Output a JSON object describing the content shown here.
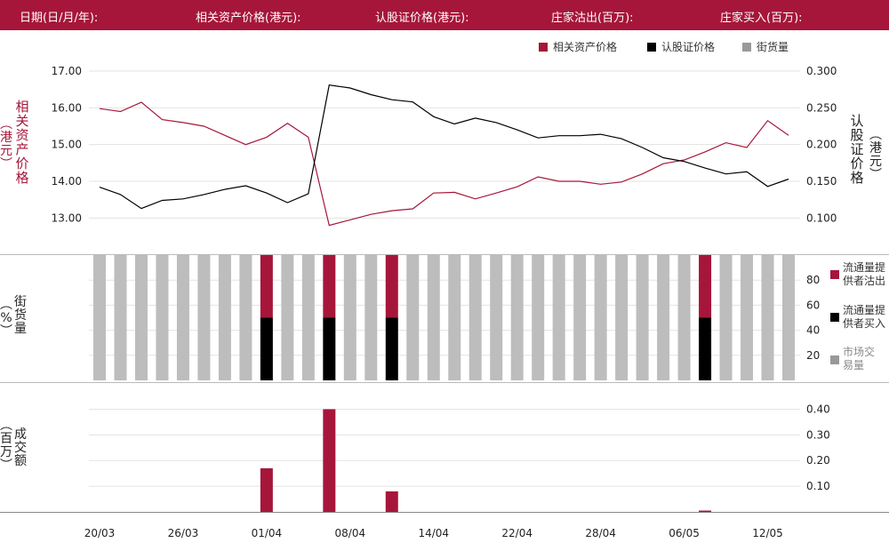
{
  "header": {
    "labels": [
      "日期(日/月/年):",
      "相关资产价格(港元):",
      "认股证价格(港元):",
      "庄家沽出(百万):",
      "庄家买入(百万):"
    ]
  },
  "legend": {
    "items": [
      {
        "label": "相关资产价格",
        "color": "#a6163a"
      },
      {
        "label": "认股证价格",
        "color": "#000000"
      },
      {
        "label": "街货量",
        "color": "#999999"
      }
    ]
  },
  "axes": {
    "left_label": "相关资产价格",
    "left_unit": "港元",
    "right_label": "认股证价格",
    "right_unit": "港元",
    "pct_label": "街货量",
    "pct_unit": "%",
    "turnover_label": "成交额",
    "turnover_unit": "百万"
  },
  "side_legend": [
    {
      "label": "流通量提供者沽出",
      "color": "#a6163a"
    },
    {
      "label": "流通量提供者买入",
      "color": "#000000"
    },
    {
      "label": "市场交易量",
      "color": "#999999"
    }
  ],
  "chart_data": {
    "type": "line",
    "x_ticks": [
      "20/03",
      "26/03",
      "01/04",
      "08/04",
      "14/04",
      "22/04",
      "28/04",
      "06/05",
      "12/05"
    ],
    "x_tick_index": [
      0,
      4,
      8,
      12,
      16,
      20,
      24,
      28,
      32
    ],
    "n_points": 34,
    "price": {
      "left_ticks": [
        "17.00",
        "16.00",
        "15.00",
        "14.00",
        "13.00"
      ],
      "left_range": [
        12.5,
        17.0
      ],
      "right_ticks": [
        "0.300",
        "0.250",
        "0.200",
        "0.150",
        "0.100"
      ],
      "right_range": [
        0.075,
        0.3
      ],
      "series": [
        {
          "name": "相关资产价格",
          "axis": "left",
          "color": "#a6163a",
          "values": [
            15.98,
            15.9,
            16.15,
            15.68,
            15.6,
            15.5,
            15.25,
            15.0,
            15.2,
            15.58,
            15.2,
            12.8,
            12.95,
            13.1,
            13.2,
            13.25,
            13.68,
            13.7,
            13.52,
            13.68,
            13.85,
            14.12,
            14.0,
            14.0,
            13.92,
            13.98,
            14.2,
            14.48,
            14.58,
            14.8,
            15.05,
            14.92,
            15.65,
            15.25
          ]
        },
        {
          "name": "认股证价格",
          "axis": "right",
          "color": "#000000",
          "values": [
            0.142,
            0.132,
            0.113,
            0.124,
            0.126,
            0.132,
            0.139,
            0.144,
            0.134,
            0.121,
            0.133,
            0.281,
            0.277,
            0.268,
            0.261,
            0.258,
            0.238,
            0.228,
            0.236,
            0.23,
            0.22,
            0.209,
            0.212,
            0.212,
            0.214,
            0.208,
            0.196,
            0.182,
            0.177,
            0.168,
            0.16,
            0.163,
            0.143,
            0.153
          ]
        }
      ]
    },
    "outstanding": {
      "type": "bar",
      "ticks": [
        "80",
        "60",
        "40",
        "20"
      ],
      "range": [
        0,
        100
      ],
      "market_pct": [
        100,
        100,
        100,
        100,
        100,
        100,
        100,
        100,
        100,
        100,
        100,
        100,
        100,
        100,
        100,
        100,
        100,
        100,
        100,
        100,
        100,
        100,
        100,
        100,
        100,
        100,
        100,
        100,
        100,
        100,
        100,
        100,
        100,
        100
      ],
      "lp_sell_pct": [
        0,
        0,
        0,
        0,
        0,
        0,
        0,
        0,
        50,
        0,
        0,
        50,
        0,
        0,
        50,
        0,
        0,
        0,
        0,
        0,
        0,
        0,
        0,
        0,
        0,
        0,
        0,
        0,
        0,
        50,
        0,
        0,
        0,
        0
      ],
      "lp_buy_pct": [
        0,
        0,
        0,
        0,
        0,
        0,
        0,
        0,
        50,
        0,
        0,
        50,
        0,
        0,
        50,
        0,
        0,
        0,
        0,
        0,
        0,
        0,
        0,
        0,
        0,
        0,
        0,
        0,
        0,
        50,
        0,
        0,
        0,
        0
      ]
    },
    "turnover": {
      "type": "bar",
      "ticks": [
        "0.40",
        "0.30",
        "0.20",
        "0.10"
      ],
      "range": [
        0,
        0.45
      ],
      "values": [
        0,
        0,
        0,
        0,
        0,
        0,
        0,
        0,
        0.17,
        0,
        0,
        0.4,
        0,
        0,
        0.08,
        0,
        0,
        0,
        0,
        0,
        0,
        0,
        0,
        0,
        0,
        0,
        0,
        0,
        0,
        0.005,
        0,
        0,
        0,
        0
      ]
    }
  }
}
